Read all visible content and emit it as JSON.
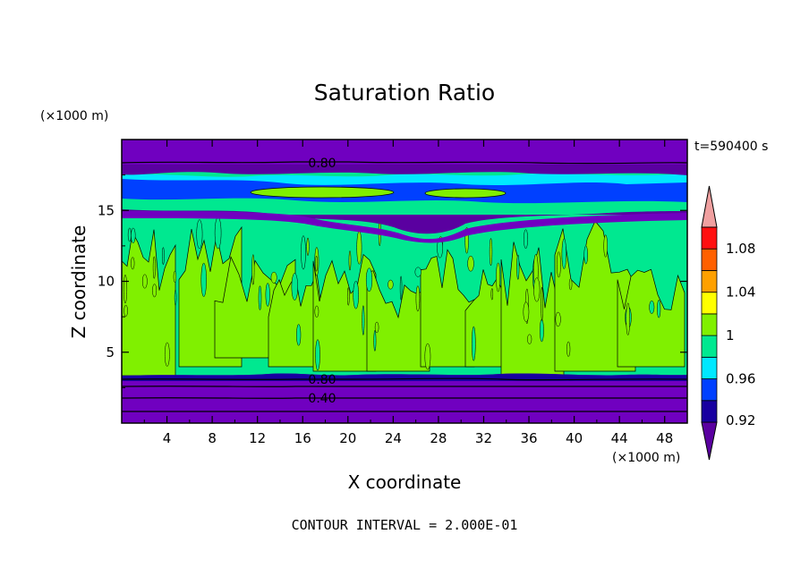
{
  "chart_data": {
    "type": "heatmap",
    "title": "Saturation Ratio",
    "xlabel": "X coordinate",
    "ylabel": "Z coordinate",
    "x_unit": "(×1000 m)",
    "y_unit": "(×1000 m)",
    "time_label": "t=590400 s",
    "footer": "CONTOUR INTERVAL = 2.000E-01",
    "xlim": [
      0,
      50
    ],
    "ylim": [
      0,
      20
    ],
    "x_ticks": [
      "4",
      "8",
      "12",
      "16",
      "20",
      "24",
      "28",
      "32",
      "36",
      "40",
      "44",
      "48"
    ],
    "y_ticks": [
      "5",
      "10",
      "15"
    ],
    "contour_labels": [
      {
        "text": "0.80",
        "x": 17.6,
        "z": 18.2
      },
      {
        "text": "0.80",
        "x": 17.6,
        "z": 3.0
      },
      {
        "text": "0.40",
        "x": 17.6,
        "z": 1.7
      }
    ],
    "colorbar": {
      "labels": [
        "1.08",
        "1.04",
        "1",
        "0.96",
        "0.92"
      ],
      "colors": [
        "#5a00a0",
        "#1800a0",
        "#0040ff",
        "#00e8ff",
        "#00e890",
        "#80f000",
        "#ffff00",
        "#ffa000",
        "#ff6000",
        "#ff1010",
        "#f0a0a0"
      ]
    },
    "layers": [
      {
        "range": [
          18.2,
          20
        ],
        "color": "#7000c0",
        "value_desc": "< 0.92"
      },
      {
        "range": [
          16.2,
          18.2
        ],
        "color": "#0040ff",
        "value_desc": "0.92-0.98"
      },
      {
        "range": [
          15.0,
          16.2
        ],
        "color": "#00e890",
        "value_desc": "0.98-1.00"
      },
      {
        "range": [
          3.3,
          15.0
        ],
        "color": "#00e890",
        "value_desc": "0.98-1.02 (mixed)"
      },
      {
        "range": [
          0,
          3.3
        ],
        "color": "#7000c0",
        "value_desc": "< 0.92"
      }
    ]
  }
}
